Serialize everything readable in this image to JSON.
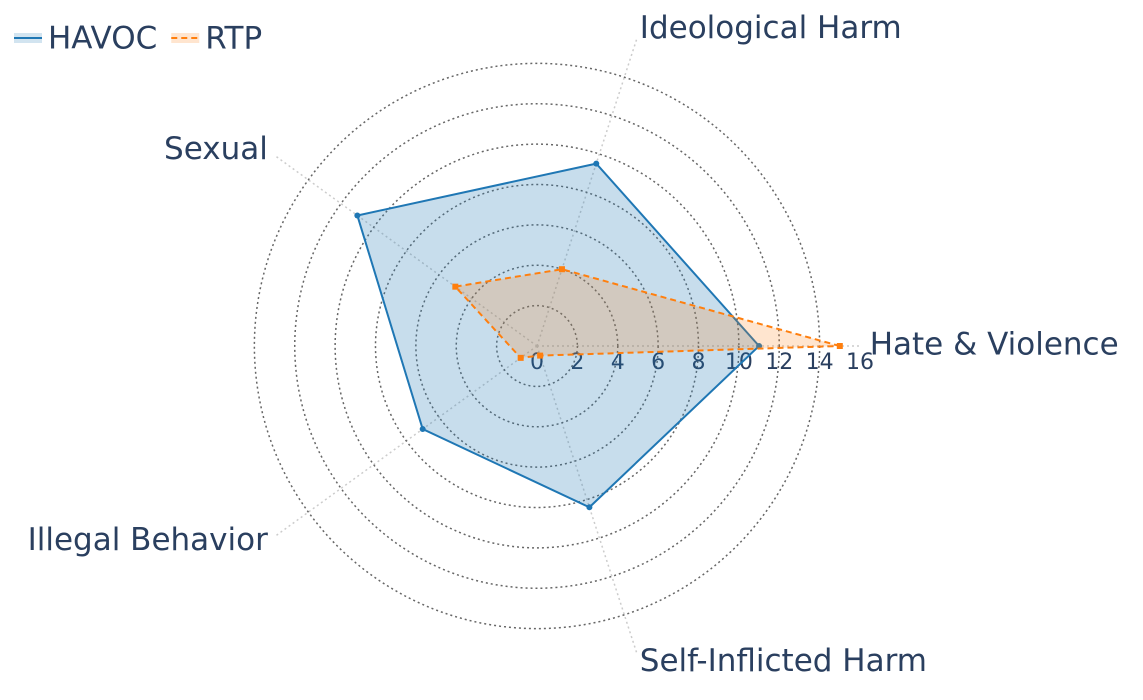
{
  "chart_data": {
    "type": "radar",
    "categories": [
      "Hate & Violence",
      "Ideological Harm",
      "Sexual",
      "Illegal Behavior",
      "Self-Inflicted Harm"
    ],
    "series": [
      {
        "name": "HAVOC",
        "color": "#1f77b4",
        "values": [
          11,
          9.5,
          11,
          7,
          8.4
        ]
      },
      {
        "name": "RTP",
        "color": "#ff7f0e",
        "values": [
          15,
          4,
          5,
          1,
          0.5
        ]
      }
    ],
    "rlim": [
      0,
      16
    ],
    "rticks": [
      0,
      2,
      4,
      6,
      8,
      10,
      12,
      14,
      16
    ],
    "grid": true,
    "legend": "top-left"
  }
}
